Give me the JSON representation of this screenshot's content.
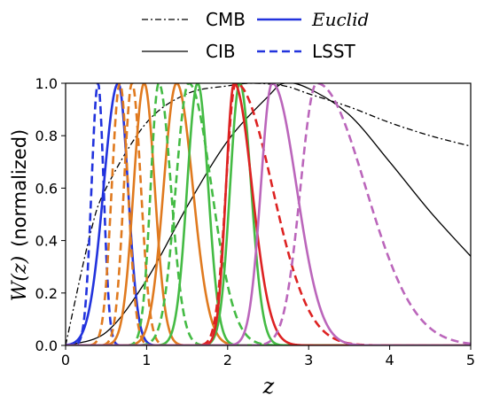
{
  "chart_data": {
    "type": "line",
    "title": "",
    "xlabel": "z",
    "ylabel_math": "W(z)",
    "ylabel_text": "(normalized)",
    "xlim": [
      0,
      5
    ],
    "ylim": [
      0,
      1.0
    ],
    "xticks": [
      "0",
      "1",
      "2",
      "3",
      "4",
      "5"
    ],
    "yticks": [
      "0.0",
      "0.2",
      "0.4",
      "0.6",
      "0.8",
      "1.0"
    ],
    "grid": false,
    "legend_position": "top-center",
    "legend": [
      {
        "label": "CMB",
        "style": "dashdot",
        "color": "#000000",
        "italic": false
      },
      {
        "label": "Euclid",
        "style": "solid",
        "color": "#2233dd",
        "italic": true
      },
      {
        "label": "CIB",
        "style": "solid",
        "color": "#000000",
        "italic": false
      },
      {
        "label": "LSST",
        "style": "dashed",
        "color": "#2233dd",
        "italic": false
      }
    ],
    "series": [
      {
        "name": "CMB",
        "kind": "cmb",
        "color": "#000000",
        "style": "dashdot",
        "points": [
          [
            0,
            0
          ],
          [
            0.3,
            0.42
          ],
          [
            0.5,
            0.6
          ],
          [
            1.0,
            0.85
          ],
          [
            1.5,
            0.96
          ],
          [
            2.0,
            0.99
          ],
          [
            2.3,
            1.0
          ],
          [
            2.7,
            0.99
          ],
          [
            3.0,
            0.96
          ],
          [
            3.5,
            0.91
          ],
          [
            4.0,
            0.85
          ],
          [
            4.5,
            0.8
          ],
          [
            5.0,
            0.76
          ]
        ]
      },
      {
        "name": "CIB",
        "kind": "cib",
        "color": "#000000",
        "style": "solid",
        "points": [
          [
            0,
            0
          ],
          [
            0.5,
            0.05
          ],
          [
            1.0,
            0.25
          ],
          [
            1.5,
            0.53
          ],
          [
            2.0,
            0.78
          ],
          [
            2.5,
            0.95
          ],
          [
            2.7,
            1.0
          ],
          [
            3.0,
            0.98
          ],
          [
            3.5,
            0.88
          ],
          [
            4.0,
            0.7
          ],
          [
            4.5,
            0.51
          ],
          [
            5.0,
            0.34
          ]
        ]
      },
      {
        "name": "Euclid",
        "kind": "bin",
        "color": "#2233dd",
        "style": "solid",
        "peak": 0.65,
        "sigma_left": 0.18,
        "sigma_right": 0.12
      },
      {
        "name": "LSST",
        "kind": "bin",
        "color": "#2233dd",
        "style": "dashed",
        "peak": 0.4,
        "sigma_left": 0.08,
        "sigma_right": 0.07
      },
      {
        "name": "Euclid",
        "kind": "bin",
        "color": "#e07a1f",
        "style": "solid",
        "peak": 0.97,
        "sigma_left": 0.13,
        "sigma_right": 0.13
      },
      {
        "name": "LSST",
        "kind": "bin",
        "color": "#e07a1f",
        "style": "dashed",
        "peak": 0.67,
        "sigma_left": 0.1,
        "sigma_right": 0.1
      },
      {
        "name": "Euclid",
        "kind": "bin",
        "color": "#e07a1f",
        "style": "solid",
        "peak": 1.37,
        "sigma_left": 0.16,
        "sigma_right": 0.2
      },
      {
        "name": "LSST",
        "kind": "bin",
        "color": "#e07a1f",
        "style": "dashed",
        "peak": 0.82,
        "sigma_left": 0.1,
        "sigma_right": 0.11
      },
      {
        "name": "LSST",
        "kind": "bin",
        "color": "#44bb44",
        "style": "dashed",
        "peak": 1.15,
        "sigma_left": 0.1,
        "sigma_right": 0.15
      },
      {
        "name": "Euclid",
        "kind": "bin",
        "color": "#44bb44",
        "style": "solid",
        "peak": 1.63,
        "sigma_left": 0.13,
        "sigma_right": 0.13
      },
      {
        "name": "LSST",
        "kind": "bin",
        "color": "#44bb44",
        "style": "dashed",
        "peak": 1.52,
        "sigma_left": 0.16,
        "sigma_right": 0.28
      },
      {
        "name": "Euclid",
        "kind": "bin",
        "color": "#44bb44",
        "style": "solid",
        "peak": 2.15,
        "sigma_left": 0.12,
        "sigma_right": 0.14
      },
      {
        "name": "Euclid",
        "kind": "bin",
        "color": "#dd2222",
        "style": "solid",
        "peak": 2.08,
        "sigma_left": 0.1,
        "sigma_right": 0.22
      },
      {
        "name": "LSST",
        "kind": "bin",
        "color": "#dd2222",
        "style": "dashed",
        "peak": 2.1,
        "sigma_left": 0.12,
        "sigma_right": 0.45
      },
      {
        "name": "Euclid",
        "kind": "bin",
        "color": "#bb66bb",
        "style": "solid",
        "peak": 2.55,
        "sigma_left": 0.14,
        "sigma_right": 0.3
      },
      {
        "name": "LSST",
        "kind": "bin",
        "color": "#bb66bb",
        "style": "dashed",
        "peak": 3.1,
        "sigma_left": 0.2,
        "sigma_right": 0.6
      }
    ]
  }
}
